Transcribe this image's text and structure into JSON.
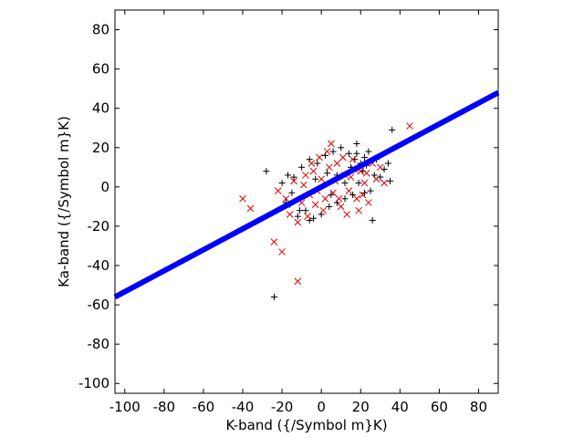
{
  "chart_data": {
    "type": "scatter",
    "xlabel": "K-band ({/Symbol m}K)",
    "ylabel": "Ka-band ({/Symbol m}K)",
    "xlim": [
      -105,
      90
    ],
    "ylim": [
      -105,
      90
    ],
    "xticks": [
      -100,
      -80,
      -60,
      -40,
      -20,
      0,
      20,
      40,
      60,
      80
    ],
    "yticks": [
      -100,
      -80,
      -60,
      -40,
      -20,
      0,
      20,
      40,
      60,
      80
    ],
    "grid": false,
    "series": [
      {
        "marker": "plus",
        "color": "#000000",
        "points": [
          [
            -28,
            8
          ],
          [
            -24,
            -56
          ],
          [
            -20,
            2
          ],
          [
            -18,
            -8
          ],
          [
            -17,
            6
          ],
          [
            -15,
            -3
          ],
          [
            -14,
            5
          ],
          [
            -12,
            -15
          ],
          [
            -10,
            10
          ],
          [
            -8,
            -12
          ],
          [
            -6,
            14
          ],
          [
            -4,
            -16
          ],
          [
            -2,
            12
          ],
          [
            0,
            -14
          ],
          [
            2,
            16
          ],
          [
            4,
            -10
          ],
          [
            6,
            18
          ],
          [
            8,
            6
          ],
          [
            10,
            20
          ],
          [
            12,
            -6
          ],
          [
            14,
            17
          ],
          [
            15,
            10
          ],
          [
            16,
            -4
          ],
          [
            17,
            14
          ],
          [
            18,
            22
          ],
          [
            19,
            2
          ],
          [
            20,
            12
          ],
          [
            21,
            8
          ],
          [
            22,
            -3
          ],
          [
            23,
            11
          ],
          [
            24,
            18
          ],
          [
            25,
            -2
          ],
          [
            26,
            -17
          ],
          [
            27,
            6
          ],
          [
            28,
            14
          ],
          [
            30,
            5
          ],
          [
            32,
            9
          ],
          [
            34,
            12
          ],
          [
            35,
            3
          ],
          [
            36,
            29
          ],
          [
            18,
            17
          ],
          [
            22,
            15
          ],
          [
            -16,
            -9
          ],
          [
            -11,
            -12
          ],
          [
            -6,
            -17
          ],
          [
            8,
            -8
          ],
          [
            12,
            2
          ],
          [
            3,
            7
          ],
          [
            -3,
            4
          ],
          [
            5,
            -4
          ]
        ]
      },
      {
        "marker": "cross",
        "color": "#e00000",
        "points": [
          [
            -40,
            -6
          ],
          [
            -36,
            -11
          ],
          [
            -24,
            -28
          ],
          [
            -20,
            -33
          ],
          [
            -12,
            -48
          ],
          [
            -18,
            -6
          ],
          [
            -14,
            3
          ],
          [
            -10,
            -8
          ],
          [
            -8,
            6
          ],
          [
            -6,
            -4
          ],
          [
            -4,
            8
          ],
          [
            -2,
            -2
          ],
          [
            0,
            4
          ],
          [
            2,
            -6
          ],
          [
            4,
            10
          ],
          [
            6,
            -3
          ],
          [
            8,
            12
          ],
          [
            10,
            -10
          ],
          [
            12,
            6
          ],
          [
            14,
            -2
          ],
          [
            16,
            14
          ],
          [
            18,
            -6
          ],
          [
            20,
            8
          ],
          [
            22,
            2
          ],
          [
            24,
            -8
          ],
          [
            26,
            12
          ],
          [
            28,
            4
          ],
          [
            30,
            10
          ],
          [
            32,
            2
          ],
          [
            45,
            31
          ],
          [
            -16,
            -14
          ],
          [
            -12,
            -18
          ],
          [
            -9,
            1
          ],
          [
            -5,
            12
          ],
          [
            -1,
            15
          ],
          [
            3,
            18
          ],
          [
            7,
            3
          ],
          [
            11,
            15
          ],
          [
            15,
            5
          ],
          [
            19,
            -12
          ],
          [
            -22,
            -2
          ],
          [
            -7,
            -15
          ],
          [
            1,
            -12
          ],
          [
            5,
            22
          ],
          [
            9,
            -6
          ],
          [
            13,
            -14
          ],
          [
            17,
            9
          ],
          [
            21,
            -4
          ],
          [
            -3,
            -9
          ],
          [
            23,
            7
          ]
        ]
      },
      {
        "marker": "line",
        "color": "#0000ff",
        "line": {
          "x_start": -105,
          "y_start": -56,
          "x_end": 90,
          "y_end": 48
        }
      }
    ]
  }
}
